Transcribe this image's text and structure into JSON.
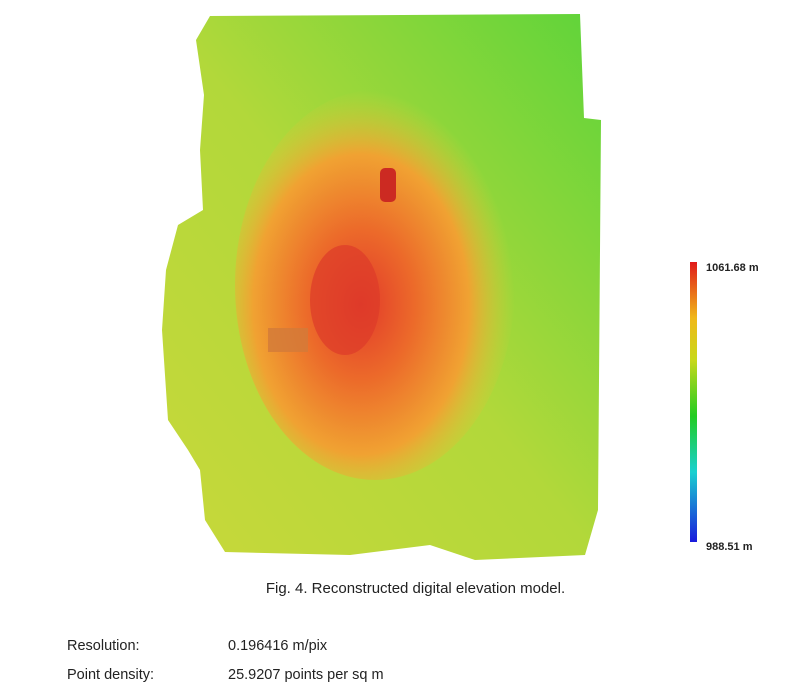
{
  "figure": {
    "caption": "Fig. 4. Reconstructed digital elevation model.",
    "legend": {
      "max_label": "1061.68 m",
      "min_label": "988.51 m"
    }
  },
  "table": {
    "rows": [
      [
        "Resolution:",
        "0.196416 m/pix"
      ],
      [
        "Point density:",
        "25.9207 points per sq m"
      ]
    ]
  }
}
